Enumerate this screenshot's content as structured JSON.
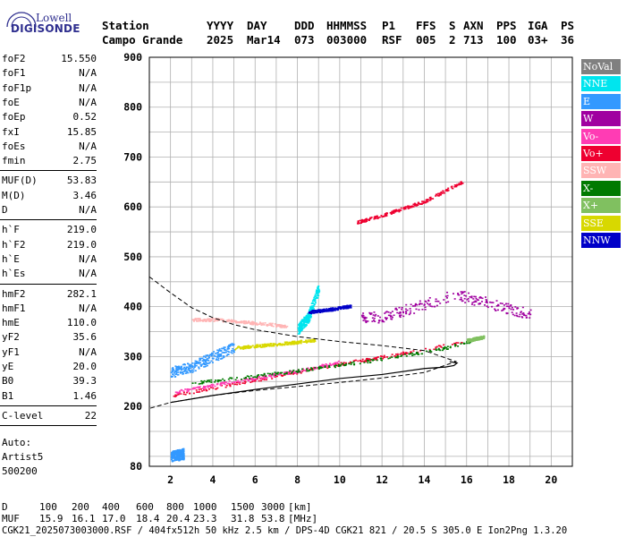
{
  "logo": {
    "line1": "Lowell",
    "line2": "DIGISONDE"
  },
  "header": {
    "row1": [
      "Station",
      "YYYY",
      "DAY",
      "DDD",
      "HHMMSS",
      "P1",
      "FFS",
      "S",
      "AXN",
      "PPS",
      "IGA",
      "PS"
    ],
    "row2": [
      "Campo Grande",
      "2025",
      "Mar14",
      "073",
      "003000",
      "RSF",
      "005",
      "2",
      "713",
      "100",
      "03+",
      "36"
    ]
  },
  "params": {
    "group1": [
      {
        "label": "foF2",
        "value": "15.550"
      },
      {
        "label": "foF1",
        "value": "N/A"
      },
      {
        "label": "foF1p",
        "value": "N/A"
      },
      {
        "label": "foE",
        "value": "N/A"
      },
      {
        "label": "foEp",
        "value": "0.52"
      },
      {
        "label": "fxI",
        "value": "15.85"
      },
      {
        "label": "foEs",
        "value": "N/A"
      },
      {
        "label": "fmin",
        "value": "2.75"
      }
    ],
    "group2": [
      {
        "label": "MUF(D)",
        "value": "53.83"
      },
      {
        "label": "M(D)",
        "value": "3.46"
      },
      {
        "label": "D",
        "value": "N/A"
      }
    ],
    "group3": [
      {
        "label": "h`F",
        "value": "219.0"
      },
      {
        "label": "h`F2",
        "value": "219.0"
      },
      {
        "label": "h`E",
        "value": "N/A"
      },
      {
        "label": "h`Es",
        "value": "N/A"
      }
    ],
    "group4": [
      {
        "label": "hmF2",
        "value": "282.1"
      },
      {
        "label": "hmF1",
        "value": "N/A"
      },
      {
        "label": "hmE",
        "value": "110.0"
      },
      {
        "label": "yF2",
        "value": "35.6"
      },
      {
        "label": "yF1",
        "value": "N/A"
      },
      {
        "label": "yE",
        "value": "20.0"
      },
      {
        "label": "B0",
        "value": "39.3"
      },
      {
        "label": "B1",
        "value": "1.46"
      }
    ],
    "group5": [
      {
        "label": "C-level",
        "value": "22"
      }
    ],
    "auto": [
      "Auto:",
      "Artist5",
      "500200"
    ]
  },
  "legend": [
    {
      "label": "NoVal",
      "color": "#808080",
      "text_color": "#ffffff"
    },
    {
      "label": "NNE",
      "color": "#00e5ee",
      "text_color": "#ffffff"
    },
    {
      "label": "E",
      "color": "#3399ff",
      "text_color": "#ffffff"
    },
    {
      "label": "W",
      "color": "#a000a0",
      "text_color": "#ffffff"
    },
    {
      "label": "Vo-",
      "color": "#ff3cb4",
      "text_color": "#ffffff"
    },
    {
      "label": "Vo+",
      "color": "#ee0030",
      "text_color": "#ffffff"
    },
    {
      "label": "SSW",
      "color": "#ffb4b4",
      "text_color": "#ffffff"
    },
    {
      "label": "X-",
      "color": "#007a00",
      "text_color": "#ffffff"
    },
    {
      "label": "X+",
      "color": "#80c060",
      "text_color": "#ffffff"
    },
    {
      "label": "SSE",
      "color": "#d8d800",
      "text_color": "#ffffff"
    },
    {
      "label": "NNW",
      "color": "#0000c8",
      "text_color": "#ffffff"
    }
  ],
  "chart_data": {
    "type": "scatter",
    "title": "",
    "xlabel": "",
    "ylabel": "",
    "xlim": [
      1,
      21
    ],
    "ylim": [
      80,
      900
    ],
    "x_ticks": [
      2,
      4,
      6,
      8,
      10,
      12,
      14,
      16,
      18,
      20
    ],
    "y_ticks": [
      80,
      200,
      300,
      400,
      500,
      600,
      700,
      800,
      900
    ],
    "grid": true,
    "legend_position": "right",
    "trace_groups": [
      {
        "name": "Vo+",
        "color": "#ee0030",
        "kind": "line",
        "x": [
          2.0,
          4.0,
          6.0,
          8.0,
          10.0,
          12.0,
          14.0,
          15.8
        ],
        "y": [
          222,
          238,
          254,
          270,
          286,
          300,
          315,
          330
        ]
      },
      {
        "name": "Vo-",
        "color": "#ff3cb4",
        "kind": "line",
        "x": [
          2.2,
          4.0,
          6.0,
          8.0,
          10.0
        ],
        "y": [
          230,
          244,
          258,
          272,
          290
        ]
      },
      {
        "name": "SSW",
        "color": "#ffb4b4",
        "kind": "line",
        "x": [
          3.0,
          4.0,
          5.0,
          6.0,
          7.0,
          7.5
        ],
        "y": [
          375,
          375,
          372,
          368,
          364,
          360
        ]
      },
      {
        "name": "SSE",
        "color": "#d8d800",
        "kind": "line",
        "x": [
          5.0,
          6.0,
          7.0,
          8.0,
          8.8
        ],
        "y": [
          318,
          322,
          326,
          330,
          334
        ]
      },
      {
        "name": "E",
        "color": "#3399ff",
        "kind": "cloud",
        "x": [
          2.0,
          3.0,
          4.0,
          5.0
        ],
        "y": [
          270,
          280,
          300,
          320
        ]
      },
      {
        "name": "E",
        "color": "#3399ff",
        "kind": "cloud",
        "x": [
          2.0,
          2.6
        ],
        "y": [
          100,
          106
        ]
      },
      {
        "name": "NNE",
        "color": "#00e5ee",
        "kind": "cloud",
        "x": [
          8.0,
          8.5,
          9.0
        ],
        "y": [
          355,
          380,
          440
        ]
      },
      {
        "name": "NNW",
        "color": "#0000c8",
        "kind": "line",
        "x": [
          8.5,
          9.5,
          10.5
        ],
        "y": [
          390,
          395,
          402
        ]
      },
      {
        "name": "W",
        "color": "#a000a0",
        "kind": "cloud",
        "x": [
          11.0,
          12.0,
          15.5,
          19.0
        ],
        "y": [
          380,
          380,
          425,
          385
        ]
      },
      {
        "name": "X-",
        "color": "#007a00",
        "kind": "line",
        "x": [
          3.0,
          6.0,
          9.0,
          12.0,
          15.0,
          16.8
        ],
        "y": [
          248,
          262,
          278,
          296,
          318,
          340
        ]
      },
      {
        "name": "X+",
        "color": "#80c060",
        "kind": "line",
        "x": [
          16.0,
          16.8
        ],
        "y": [
          333,
          340
        ]
      },
      {
        "name": "Vo+ (2nd hop)",
        "color": "#ee0030",
        "kind": "line",
        "x": [
          10.8,
          12.0,
          14.0,
          15.8
        ],
        "y": [
          570,
          584,
          612,
          652
        ]
      }
    ],
    "profile_curve": {
      "x": [
        2.0,
        4.0,
        6.0,
        8.0,
        10.0,
        12.0,
        14.0,
        15.0,
        15.4,
        15.55,
        15.2
      ],
      "y": [
        208,
        222,
        234,
        245,
        256,
        264,
        276,
        279,
        282,
        287,
        290
      ]
    },
    "dashed_curve": {
      "x": [
        1.0,
        2.0,
        3.0,
        4.0,
        5.0,
        6.0,
        8.0,
        10.0,
        12.0,
        14.0,
        15.5,
        14.0,
        12.0,
        10.0,
        8.0,
        6.0,
        4.0,
        2.0,
        1.0
      ],
      "y": [
        460,
        428,
        398,
        378,
        364,
        354,
        340,
        330,
        322,
        312,
        290,
        268,
        257,
        248,
        240,
        232,
        222,
        208,
        196
      ]
    }
  },
  "footer": {
    "row_d": [
      "D",
      "100",
      "200",
      "400",
      "600",
      "800",
      "1000",
      "1500",
      "3000",
      "[km]"
    ],
    "row_muf": [
      "MUF",
      "15.9",
      "16.1",
      "17.0",
      "18.4",
      "20.4",
      "23.3",
      "31.8",
      "53.8",
      "[MHz]"
    ],
    "info": "CGK21_2025073003000.RSF / 404fx512h 50 kHz 2.5 km / DPS-4D CGK21 821 / 20.5 S 305.0 E Ion2Png 1.3.20"
  }
}
